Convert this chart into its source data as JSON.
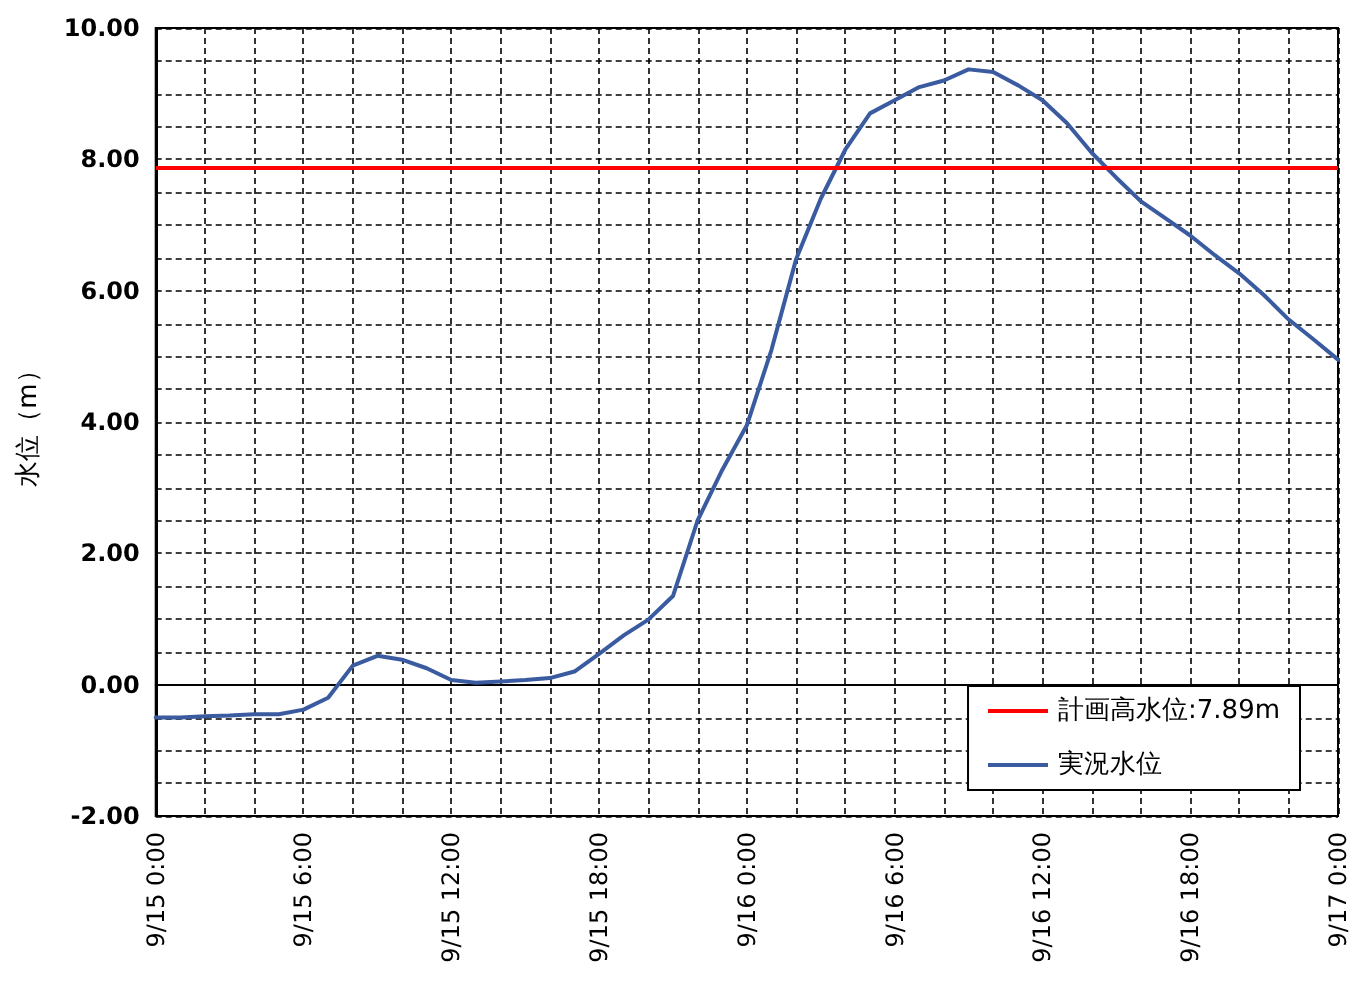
{
  "chart_data": {
    "type": "line",
    "ylabel": "水位（m）",
    "x": [
      "--09-15T00:00",
      "--09-15T01:00",
      "--09-15T02:00",
      "--09-15T03:00",
      "--09-15T04:00",
      "--09-15T05:00",
      "--09-15T06:00",
      "--09-15T07:00",
      "--09-15T08:00",
      "--09-15T09:00",
      "--09-15T10:00",
      "--09-15T11:00",
      "--09-15T12:00",
      "--09-15T13:00",
      "--09-15T14:00",
      "--09-15T15:00",
      "--09-15T16:00",
      "--09-15T17:00",
      "--09-15T18:00",
      "--09-15T19:00",
      "--09-15T20:00",
      "--09-15T21:00",
      "--09-15T22:00",
      "--09-15T23:00",
      "--09-16T00:00",
      "--09-16T01:00",
      "--09-16T02:00",
      "--09-16T03:00",
      "--09-16T04:00",
      "--09-16T05:00",
      "--09-16T06:00",
      "--09-16T07:00",
      "--09-16T08:00",
      "--09-16T09:00",
      "--09-16T10:00",
      "--09-16T11:00",
      "--09-16T12:00",
      "--09-16T13:00",
      "--09-16T14:00",
      "--09-16T15:00",
      "--09-16T16:00",
      "--09-16T17:00",
      "--09-16T18:00",
      "--09-16T19:00",
      "--09-16T20:00",
      "--09-16T21:00",
      "--09-16T22:00",
      "--09-16T23:00",
      "--09-17T00:00"
    ],
    "series": [
      {
        "name": "実況水位",
        "color": "#3a5ba0",
        "values": [
          -0.5,
          -0.5,
          -0.48,
          -0.47,
          -0.45,
          -0.45,
          -0.38,
          -0.2,
          0.29,
          0.44,
          0.38,
          0.25,
          0.07,
          0.03,
          0.05,
          0.07,
          0.1,
          0.2,
          0.47,
          0.75,
          0.99,
          1.35,
          2.5,
          3.27,
          3.95,
          5.1,
          6.48,
          7.4,
          8.15,
          8.7,
          8.9,
          9.1,
          9.2,
          9.37,
          9.33,
          9.13,
          8.9,
          8.55,
          8.1,
          7.72,
          7.36,
          7.1,
          6.84,
          6.54,
          6.26,
          5.93,
          5.56,
          5.26,
          4.95
        ]
      }
    ],
    "ref_lines": [
      {
        "axis": "y",
        "value": 7.89,
        "label": "計画高水位:7.89m",
        "color": "#ff0000"
      }
    ],
    "xlim": [
      "--09-15T00:00",
      "--09-17T00:00"
    ],
    "xticks": [
      {
        "value": "--09-15T00:00",
        "label": "9/15 0:00"
      },
      {
        "value": "--09-15T02:00",
        "label": null
      },
      {
        "value": "--09-15T04:00",
        "label": null
      },
      {
        "value": "--09-15T06:00",
        "label": "9/15 6:00"
      },
      {
        "value": "--09-15T08:00",
        "label": null
      },
      {
        "value": "--09-15T10:00",
        "label": null
      },
      {
        "value": "--09-15T12:00",
        "label": "9/15 12:00"
      },
      {
        "value": "--09-15T14:00",
        "label": null
      },
      {
        "value": "--09-15T16:00",
        "label": null
      },
      {
        "value": "--09-15T18:00",
        "label": "9/15 18:00"
      },
      {
        "value": "--09-15T20:00",
        "label": null
      },
      {
        "value": "--09-15T22:00",
        "label": null
      },
      {
        "value": "--09-16T00:00",
        "label": "9/16 0:00"
      },
      {
        "value": "--09-16T02:00",
        "label": null
      },
      {
        "value": "--09-16T04:00",
        "label": null
      },
      {
        "value": "--09-16T06:00",
        "label": "9/16 6:00"
      },
      {
        "value": "--09-16T08:00",
        "label": null
      },
      {
        "value": "--09-16T10:00",
        "label": null
      },
      {
        "value": "--09-16T12:00",
        "label": "9/16 12:00"
      },
      {
        "value": "--09-16T14:00",
        "label": null
      },
      {
        "value": "--09-16T16:00",
        "label": null
      },
      {
        "value": "--09-16T18:00",
        "label": "9/16 18:00"
      },
      {
        "value": "--09-16T20:00",
        "label": null
      },
      {
        "value": "--09-16T22:00",
        "label": null
      },
      {
        "value": "--09-17T00:00",
        "label": "9/17 0:00"
      }
    ],
    "ylim": [
      -2,
      10
    ],
    "yticks": [
      {
        "value": -2,
        "label": "-2.00"
      },
      {
        "value": -1.5,
        "label": null
      },
      {
        "value": -1,
        "label": null
      },
      {
        "value": -0.5,
        "label": null
      },
      {
        "value": 0,
        "label": "0.00"
      },
      {
        "value": 0.5,
        "label": null
      },
      {
        "value": 1,
        "label": null
      },
      {
        "value": 1.5,
        "label": null
      },
      {
        "value": 2,
        "label": "2.00"
      },
      {
        "value": 2.5,
        "label": null
      },
      {
        "value": 3,
        "label": null
      },
      {
        "value": 3.5,
        "label": null
      },
      {
        "value": 4,
        "label": "4.00"
      },
      {
        "value": 4.5,
        "label": null
      },
      {
        "value": 5,
        "label": null
      },
      {
        "value": 5.5,
        "label": null
      },
      {
        "value": 6,
        "label": "6.00"
      },
      {
        "value": 6.5,
        "label": null
      },
      {
        "value": 7,
        "label": null
      },
      {
        "value": 7.5,
        "label": null
      },
      {
        "value": 8,
        "label": "8.00"
      },
      {
        "value": 8.5,
        "label": null
      },
      {
        "value": 9,
        "label": null
      },
      {
        "value": 9.5,
        "label": null
      },
      {
        "value": 10,
        "label": "10.00"
      }
    ],
    "grid": true,
    "legend": "bottom right"
  }
}
